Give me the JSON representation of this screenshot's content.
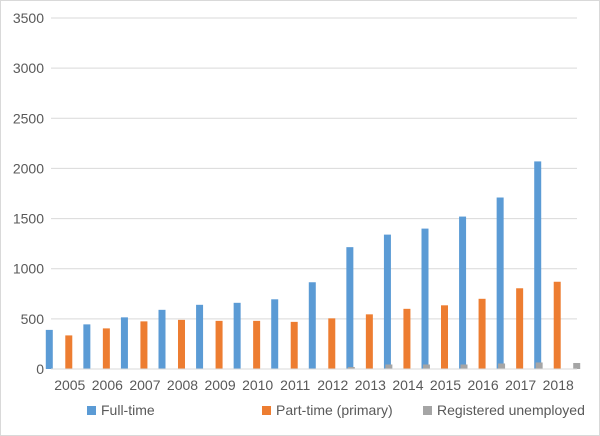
{
  "chart_data": {
    "type": "bar",
    "categories": [
      "2005",
      "2006",
      "2007",
      "2008",
      "2009",
      "2010",
      "2011",
      "2012",
      "2013",
      "2014",
      "2015",
      "2016",
      "2017",
      "2018"
    ],
    "series": [
      {
        "name": "Full-time",
        "color": "#5b9bd5",
        "values": [
          390,
          445,
          515,
          590,
          640,
          660,
          695,
          865,
          1215,
          1340,
          1400,
          1520,
          1710,
          2070
        ]
      },
      {
        "name": "Part-time (primary)",
        "color": "#ed7d31",
        "values": [
          335,
          405,
          475,
          490,
          480,
          480,
          470,
          505,
          545,
          600,
          635,
          700,
          805,
          870
        ]
      },
      {
        "name": "Registered unemployed",
        "color": "#a5a5a5",
        "values": [
          0,
          0,
          0,
          0,
          0,
          0,
          0,
          20,
          45,
          45,
          45,
          55,
          65,
          60
        ]
      }
    ],
    "ylim": [
      0,
      3500
    ],
    "yticks": [
      0,
      500,
      1000,
      1500,
      2000,
      2500,
      3000,
      3500
    ],
    "grid": true,
    "legend_position": "bottom"
  }
}
